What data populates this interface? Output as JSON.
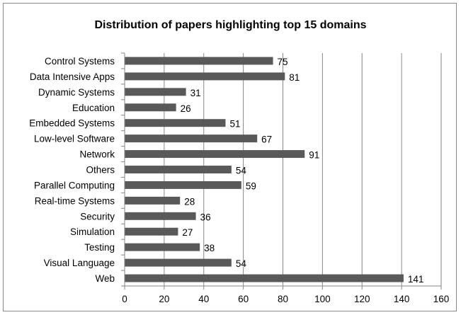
{
  "chart_data": {
    "type": "bar",
    "orientation": "horizontal",
    "title": "Distribution of papers highlighting top 15 domains",
    "categories": [
      "Control Systems",
      "Data Intensive Apps",
      "Dynamic Systems",
      "Education",
      "Embedded Systems",
      "Low-level Software",
      "Network",
      "Others",
      "Parallel Computing",
      "Real-time Systems",
      "Security",
      "Simulation",
      "Testing",
      "Visual Language",
      "Web"
    ],
    "values": [
      75,
      81,
      31,
      26,
      51,
      67,
      91,
      54,
      59,
      28,
      36,
      27,
      38,
      54,
      141
    ],
    "xlabel": "",
    "ylabel": "",
    "xlim": [
      0,
      160
    ],
    "xticks": [
      0,
      20,
      40,
      60,
      80,
      100,
      120,
      140,
      160
    ],
    "data_labels": true,
    "grid": "vertical",
    "legend": "none",
    "colors": {
      "bar": "#595959",
      "grid": "#868686",
      "axis": "#868686",
      "frame": "#888888"
    }
  }
}
